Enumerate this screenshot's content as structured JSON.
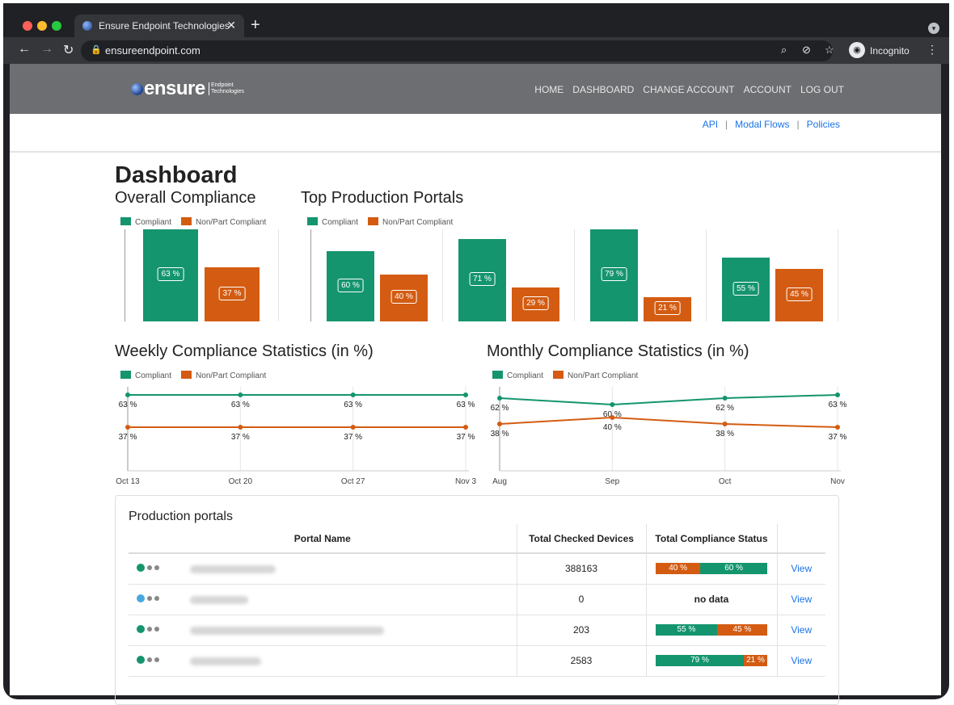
{
  "browser": {
    "tab_title": "Ensure Endpoint Technologies",
    "url": "ensureendpoint.com",
    "profile_label": "Incognito",
    "colors": {
      "frame": "#202124",
      "toolbar": "#35363a"
    }
  },
  "header": {
    "logo_word": "ensure",
    "logo_tagline_1": "Endpoint",
    "logo_tagline_2": "Technologies",
    "nav": [
      "HOME",
      "DASHBOARD",
      "CHANGE ACCOUNT",
      "ACCOUNT",
      "LOG OUT"
    ],
    "subnav": [
      "API",
      "Modal Flows",
      "Policies"
    ]
  },
  "page": {
    "title": "Dashboard",
    "overall_title": "Overall Compliance",
    "top_portals_title": "Top Production Portals",
    "weekly_title": "Weekly Compliance Statistics (in %)",
    "monthly_title": "Monthly Compliance Statistics (in %)",
    "legend_compliant": "Compliant",
    "legend_noncompliant": "Non/Part Compliant"
  },
  "colors": {
    "compliant": "#14956e",
    "noncompliant": "#d35c12",
    "link": "#1a73e8",
    "no_data_dot": "#4aa8e0"
  },
  "chart_data": [
    {
      "type": "bar",
      "title": "Overall Compliance",
      "categories": [
        ""
      ],
      "series": [
        {
          "name": "Compliant",
          "values": [
            63
          ]
        },
        {
          "name": "Non/Part Compliant",
          "values": [
            37
          ]
        }
      ],
      "labels": {
        "compliant": [
          "63 %"
        ],
        "noncompliant": [
          "37 %"
        ]
      },
      "ylim": [
        0,
        63
      ]
    },
    {
      "type": "bar",
      "title": "Top Production Portals",
      "categories": [
        "",
        "",
        "",
        ""
      ],
      "series": [
        {
          "name": "Compliant",
          "values": [
            60,
            71,
            79,
            55
          ]
        },
        {
          "name": "Non/Part Compliant",
          "values": [
            40,
            29,
            21,
            45
          ]
        }
      ],
      "labels": {
        "compliant": [
          "60 %",
          "71 %",
          "79 %",
          "55 %"
        ],
        "noncompliant": [
          "40 %",
          "29 %",
          "21 %",
          "45 %"
        ]
      },
      "ylim": [
        0,
        79
      ]
    },
    {
      "type": "line",
      "title": "Weekly Compliance Statistics (in %)",
      "x": [
        "Oct 13",
        "Oct 20",
        "Oct 27",
        "Nov 3"
      ],
      "series": [
        {
          "name": "Compliant",
          "values": [
            63,
            63,
            63,
            63
          ]
        },
        {
          "name": "Non/Part Compliant",
          "values": [
            37,
            37,
            37,
            37
          ]
        }
      ],
      "labels": {
        "compliant": [
          "63 %",
          "63 %",
          "63 %",
          "63 %"
        ],
        "noncompliant": [
          "37 %",
          "37 %",
          "37 %",
          "37 %"
        ]
      }
    },
    {
      "type": "line",
      "title": "Monthly Compliance Statistics (in %)",
      "x": [
        "Aug",
        "Sep",
        "Oct",
        "Nov"
      ],
      "series": [
        {
          "name": "Compliant",
          "values": [
            62,
            60,
            62,
            63
          ]
        },
        {
          "name": "Non/Part Compliant",
          "values": [
            38,
            40,
            38,
            37
          ]
        }
      ],
      "labels": {
        "compliant": [
          "62 %",
          "60 %",
          "62 %",
          "63 %"
        ],
        "noncompliant": [
          "38 %",
          "40 %",
          "38 %",
          "37 %"
        ]
      }
    }
  ],
  "portals": {
    "title": "Production portals",
    "columns": [
      "Portal Name",
      "Total Checked Devices",
      "Total Compliance Status"
    ],
    "rows": [
      {
        "status": "compliant",
        "devices": "388163",
        "has_data": true,
        "compliant": 60,
        "noncompliant": 40,
        "order": "noncompliant-first",
        "compliant_label": "60 %",
        "noncompliant_label": "40 %",
        "action": "View"
      },
      {
        "status": "no-data",
        "devices": "0",
        "has_data": false,
        "no_data_label": "no data",
        "action": "View"
      },
      {
        "status": "compliant",
        "devices": "203",
        "has_data": true,
        "compliant": 55,
        "noncompliant": 45,
        "order": "compliant-first",
        "compliant_label": "55 %",
        "noncompliant_label": "45 %",
        "action": "View"
      },
      {
        "status": "compliant",
        "devices": "2583",
        "has_data": true,
        "compliant": 79,
        "noncompliant": 21,
        "order": "compliant-first",
        "compliant_label": "79 %",
        "noncompliant_label": "21 %",
        "action": "View"
      }
    ]
  }
}
